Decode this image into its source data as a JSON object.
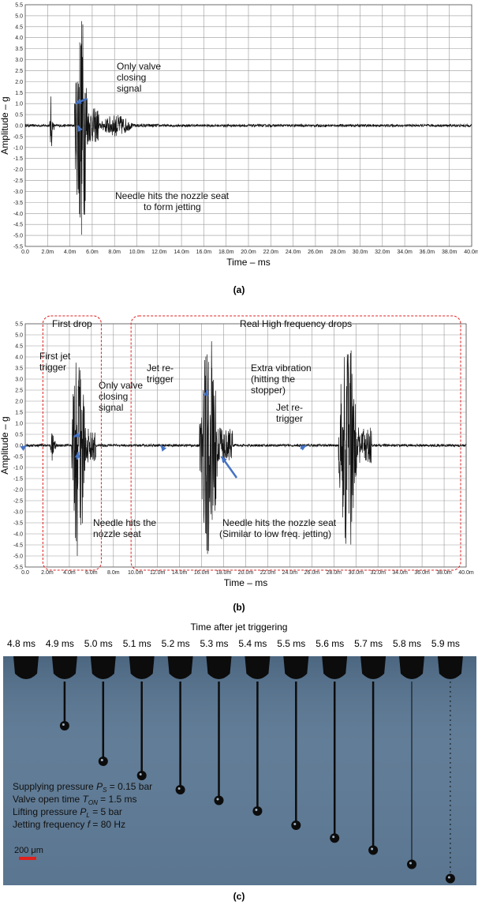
{
  "chart_data": [
    {
      "type": "line",
      "panel": "(a)",
      "xlabel": "Time – ms",
      "ylabel": "Amplitude – g",
      "xlim": [
        0,
        40
      ],
      "ylim": [
        -5.5,
        5.5
      ],
      "x_ticks": [
        "0.0",
        "2.0m",
        "4.0m",
        "6.0m",
        "8.0m",
        "10.0m",
        "12.0m",
        "14.0m",
        "16.0m",
        "18.0m",
        "20.0m",
        "22.0m",
        "24.0m",
        "26.0m",
        "28.0m",
        "30.0m",
        "32.0m",
        "34.0m",
        "36.0m",
        "38.0m",
        "40.0m"
      ],
      "y_ticks": [
        "5.5",
        "5.0",
        "4.5",
        "4.0",
        "3.5",
        "3.0",
        "2.5",
        "2.0",
        "1.5",
        "1.0",
        "0.5",
        "0.0",
        "-0.5",
        "-1.0",
        "-1.5",
        "-2.0",
        "-2.5",
        "-3.0",
        "-3.5",
        "-4.0",
        "-4.5",
        "-5.0",
        "-5.5"
      ],
      "grid": true,
      "bursts": [
        {
          "start": 2.2,
          "end": 2.6,
          "amp": 1.4
        },
        {
          "start": 4.4,
          "end": 6.6,
          "amp": 5.3
        },
        {
          "start": 6.6,
          "end": 12.0,
          "amp": 0.5
        }
      ],
      "annotations": [
        {
          "text": "Only valve\nclosing\nsignal",
          "arrow_to": [
            4.5,
            1.0
          ]
        },
        {
          "text": "Needle hits the nozzle seat\nto form jetting",
          "arrow_to": [
            4.7,
            0.0
          ]
        }
      ]
    },
    {
      "type": "line",
      "panel": "(b)",
      "xlabel": "Time – ms",
      "ylabel": "Amplitude – g",
      "xlim": [
        0,
        40
      ],
      "ylim": [
        -5.5,
        5.5
      ],
      "x_ticks": [
        "0.0",
        "2.0m",
        "4.0m",
        "6.0m",
        "8.0m",
        "10.0m",
        "12.0m",
        "14.0m",
        "16.0m",
        "18.0m",
        "20.0m",
        "22.0m",
        "24.0m",
        "26.0m",
        "28.0m",
        "30.0m",
        "32.0m",
        "34.0m",
        "36.0m",
        "38.0m",
        "40.0m"
      ],
      "y_ticks": [
        "5.5",
        "5.0",
        "4.5",
        "4.0",
        "3.5",
        "3.0",
        "2.5",
        "2.0",
        "1.5",
        "1.0",
        "0.5",
        "0.0",
        "-0.5",
        "-1.0",
        "-1.5",
        "-2.0",
        "-2.5",
        "-3.0",
        "-3.5",
        "-4.0",
        "-4.5",
        "-5.0",
        "-5.5"
      ],
      "grid": true,
      "regions": [
        {
          "label": "First drop",
          "x": [
            1.6,
            6.9
          ]
        },
        {
          "label": "Real High frequency drops",
          "x": [
            9.6,
            39.5
          ]
        }
      ],
      "bursts": [
        {
          "start": 2.3,
          "end": 2.8,
          "amp": 1.4
        },
        {
          "start": 4.2,
          "end": 6.4,
          "amp": 5.3
        },
        {
          "start": 15.8,
          "end": 18.8,
          "amp": 5.4
        },
        {
          "start": 28.4,
          "end": 31.4,
          "amp": 5.4
        }
      ],
      "annotations": [
        {
          "text": "First jet\ntrigger",
          "arrow_to": [
            0.1,
            0.0
          ]
        },
        {
          "text": "Only valve\nclosing\nsignal",
          "arrow_to": [
            4.4,
            0.4
          ]
        },
        {
          "text": "Needle hits the\nnozzle seat",
          "arrow_to": [
            4.8,
            -0.3
          ]
        },
        {
          "text": "Jet re-\ntrigger",
          "arrow_to": [
            12.3,
            0.0
          ]
        },
        {
          "text": "Extra vibration\n(hitting the\nstopper)",
          "arrow_to": [
            16.5,
            2.5
          ]
        },
        {
          "text": "Jet re-\ntrigger",
          "arrow_to": [
            25.5,
            0.0
          ]
        },
        {
          "text": "Needle hits the nozzle seat\n(Similar to low freq. jetting)",
          "arrow_to": [
            17.8,
            -0.5
          ]
        }
      ]
    }
  ],
  "panel_labels": {
    "a": "(a)",
    "b": "(b)",
    "c": "(c)"
  },
  "figure_c": {
    "header": "Time after jet triggering",
    "frames": [
      "4.8 ms",
      "4.9 ms",
      "5.0 ms",
      "5.1 ms",
      "5.2 ms",
      "5.3 ms",
      "5.4 ms",
      "5.5 ms",
      "5.6 ms",
      "5.7 ms",
      "5.8 ms",
      "5.9 ms"
    ],
    "params": [
      {
        "text": "Supplying pressure",
        "sym": "P",
        "sub": "S",
        "value": " = 0.15 bar"
      },
      {
        "text": "Valve open time",
        "sym": "T",
        "sub": "ON",
        "value": " = 1.5 ms"
      },
      {
        "text": "Lifting pressure",
        "sym": "P",
        "sub": "L",
        "value": " = 5 bar"
      },
      {
        "text": "Jetting frequency",
        "sym": "f",
        "sub": "",
        "value": " = 80 Hz"
      }
    ],
    "scale_bar": "200 μm",
    "colors": {
      "background": "#5f7a94",
      "scale_bar": "#e0201c",
      "arrow": "#4472c4",
      "region": "#e02020"
    }
  }
}
